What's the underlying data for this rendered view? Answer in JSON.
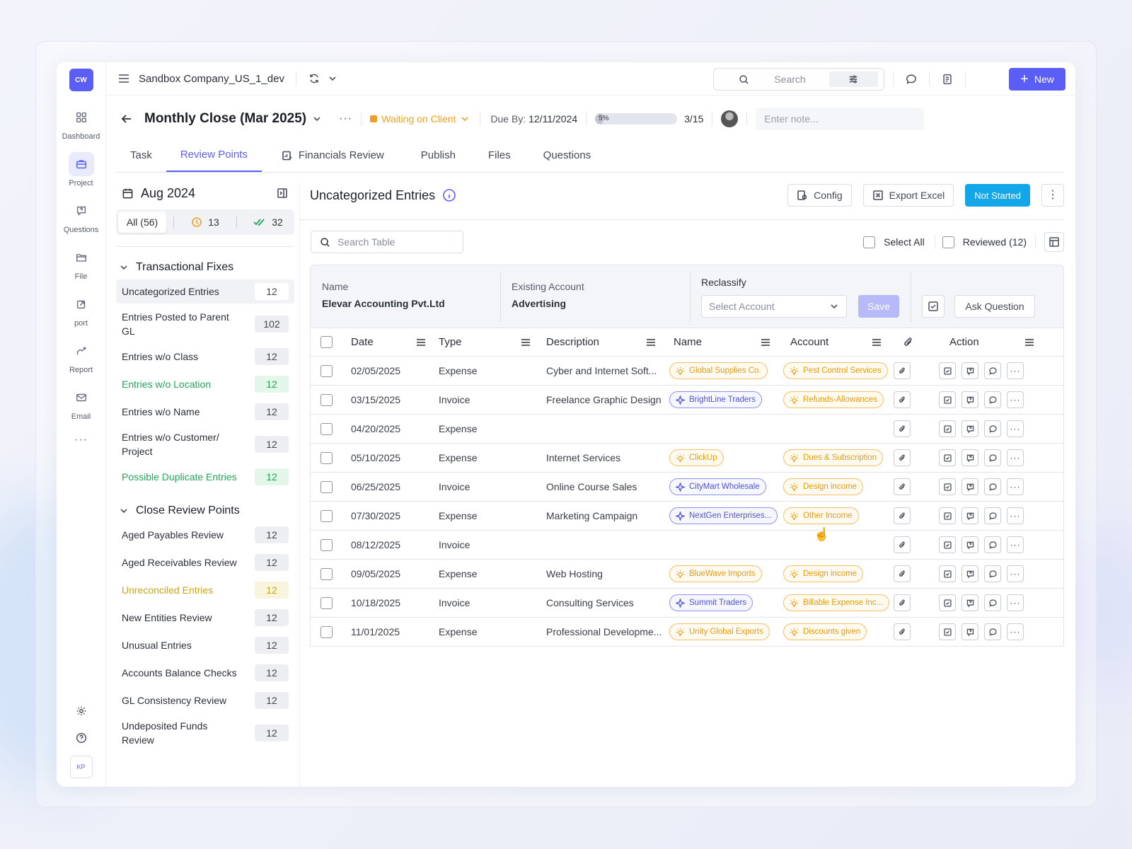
{
  "rail": {
    "logo": "CW",
    "items": [
      {
        "label": "Dashboard",
        "icon": "grid-icon"
      },
      {
        "label": "Project",
        "icon": "briefcase-icon"
      },
      {
        "label": "Questions",
        "icon": "question-chat-icon"
      },
      {
        "label": "File",
        "icon": "folder-icon"
      },
      {
        "label": "port",
        "icon": "import-icon"
      },
      {
        "label": "Report",
        "icon": "chart-line-icon"
      },
      {
        "label": "Email",
        "icon": "mail-icon"
      }
    ],
    "more": "···",
    "user_initials": "KP"
  },
  "topbar": {
    "company": "Sandbox Company_US_1_dev",
    "search_placeholder": "Search",
    "new_label": "New"
  },
  "project": {
    "title": "Monthly Close (Mar 2025)",
    "status": "Waiting on Client",
    "due_label": "Due By:",
    "due_date": "12/11/2024",
    "progress_label": "5%",
    "progress_value": 5,
    "tasks": "3/15",
    "note_placeholder": "Enter note..."
  },
  "tabs": [
    "Task",
    "Review Points",
    "Financials Review",
    "Publish",
    "Files",
    "Questions"
  ],
  "left_panel": {
    "period": "Aug 2024",
    "filters": {
      "all": "All (56)",
      "pending": "13",
      "done": "32"
    },
    "groups": [
      {
        "title": "Transactional Fixes",
        "items": [
          {
            "label": "Uncategorized Entries",
            "count": "12",
            "style": "active"
          },
          {
            "label": "Entries Posted to Parent GL",
            "count": "102",
            "style": ""
          },
          {
            "label": "Entries w/o Class",
            "count": "12",
            "style": ""
          },
          {
            "label": "Entries w/o Location",
            "count": "12",
            "style": "green"
          },
          {
            "label": "Entries w/o Name",
            "count": "12",
            "style": ""
          },
          {
            "label": "Entries w/o Customer/ Project",
            "count": "12",
            "style": ""
          },
          {
            "label": "Possible Duplicate Entries",
            "count": "12",
            "style": "green"
          }
        ]
      },
      {
        "title": "Close Review Points",
        "items": [
          {
            "label": "Aged Payables Review",
            "count": "12",
            "style": ""
          },
          {
            "label": "Aged Receivables Review",
            "count": "12",
            "style": ""
          },
          {
            "label": "Unreconciled Entries",
            "count": "12",
            "style": "yellow"
          },
          {
            "label": "New Entities Review",
            "count": "12",
            "style": ""
          },
          {
            "label": "Unusual Entries",
            "count": "12",
            "style": ""
          },
          {
            "label": "Accounts Balance Checks",
            "count": "12",
            "style": ""
          },
          {
            "label": "GL Consistency Review",
            "count": "12",
            "style": ""
          },
          {
            "label": "Undeposited Funds Review",
            "count": "12",
            "style": ""
          }
        ]
      }
    ]
  },
  "main": {
    "title": "Uncategorized Entries",
    "config_label": "Config",
    "export_label": "Export Excel",
    "status_label": "Not Started",
    "search_placeholder": "Search Table",
    "select_all": "Select All",
    "reviewed": "Reviewed (12)",
    "reclassify": {
      "name_label": "Name",
      "name_value": "Elevar Accounting Pvt.Ltd",
      "existing_label": "Existing Account",
      "existing_value": "Advertising",
      "reclassify_label": "Reclassify",
      "select_placeholder": "Select Account",
      "save_label": "Save",
      "ask_label": "Ask Question"
    },
    "columns": {
      "date": "Date",
      "type": "Type",
      "description": "Description",
      "name": "Name",
      "account": "Account",
      "action": "Action"
    },
    "rows": [
      {
        "date": "02/05/2025",
        "type": "Expense",
        "description": "Cyber and Internet Soft...",
        "name": "Global Supplies Co.",
        "name_kind": "o",
        "account": "Pest Control Services"
      },
      {
        "date": "03/15/2025",
        "type": "Invoice",
        "description": "Freelance Graphic Design",
        "name": "BrightLine Traders",
        "name_kind": "b",
        "account": "Refunds-Allowances"
      },
      {
        "date": "04/20/2025",
        "type": "Expense",
        "description": "",
        "name": "",
        "name_kind": "",
        "account": ""
      },
      {
        "date": "05/10/2025",
        "type": "Expense",
        "description": "Internet Services",
        "name": "ClickUp",
        "name_kind": "o",
        "account": "Dues & Subscription"
      },
      {
        "date": "06/25/2025",
        "type": "Invoice",
        "description": "Online Course Sales",
        "name": "CityMart Wholesale",
        "name_kind": "b",
        "account": "Design income"
      },
      {
        "date": "07/30/2025",
        "type": "Expense",
        "description": "Marketing Campaign",
        "name": "NextGen Enterprises...",
        "name_kind": "b",
        "account": "Other Income"
      },
      {
        "date": "08/12/2025",
        "type": "Invoice",
        "description": "",
        "name": "",
        "name_kind": "",
        "account": ""
      },
      {
        "date": "09/05/2025",
        "type": "Expense",
        "description": "Web Hosting",
        "name": "BlueWave Imports",
        "name_kind": "o",
        "account": "Design income"
      },
      {
        "date": "10/18/2025",
        "type": "Invoice",
        "description": "Consulting Services",
        "name": "Summit Traders",
        "name_kind": "b",
        "account": "Billable Expense Inc..."
      },
      {
        "date": "11/01/2025",
        "type": "Expense",
        "description": "Professional Developme...",
        "name": "Unity Global Exports",
        "name_kind": "o",
        "account": "Discounts given"
      }
    ]
  },
  "colors": {
    "accent": "#5b5ef4",
    "status_wait": "#f0a020",
    "not_started": "#13a6e8",
    "green": "#22a65a",
    "yellow": "#c9a516"
  }
}
